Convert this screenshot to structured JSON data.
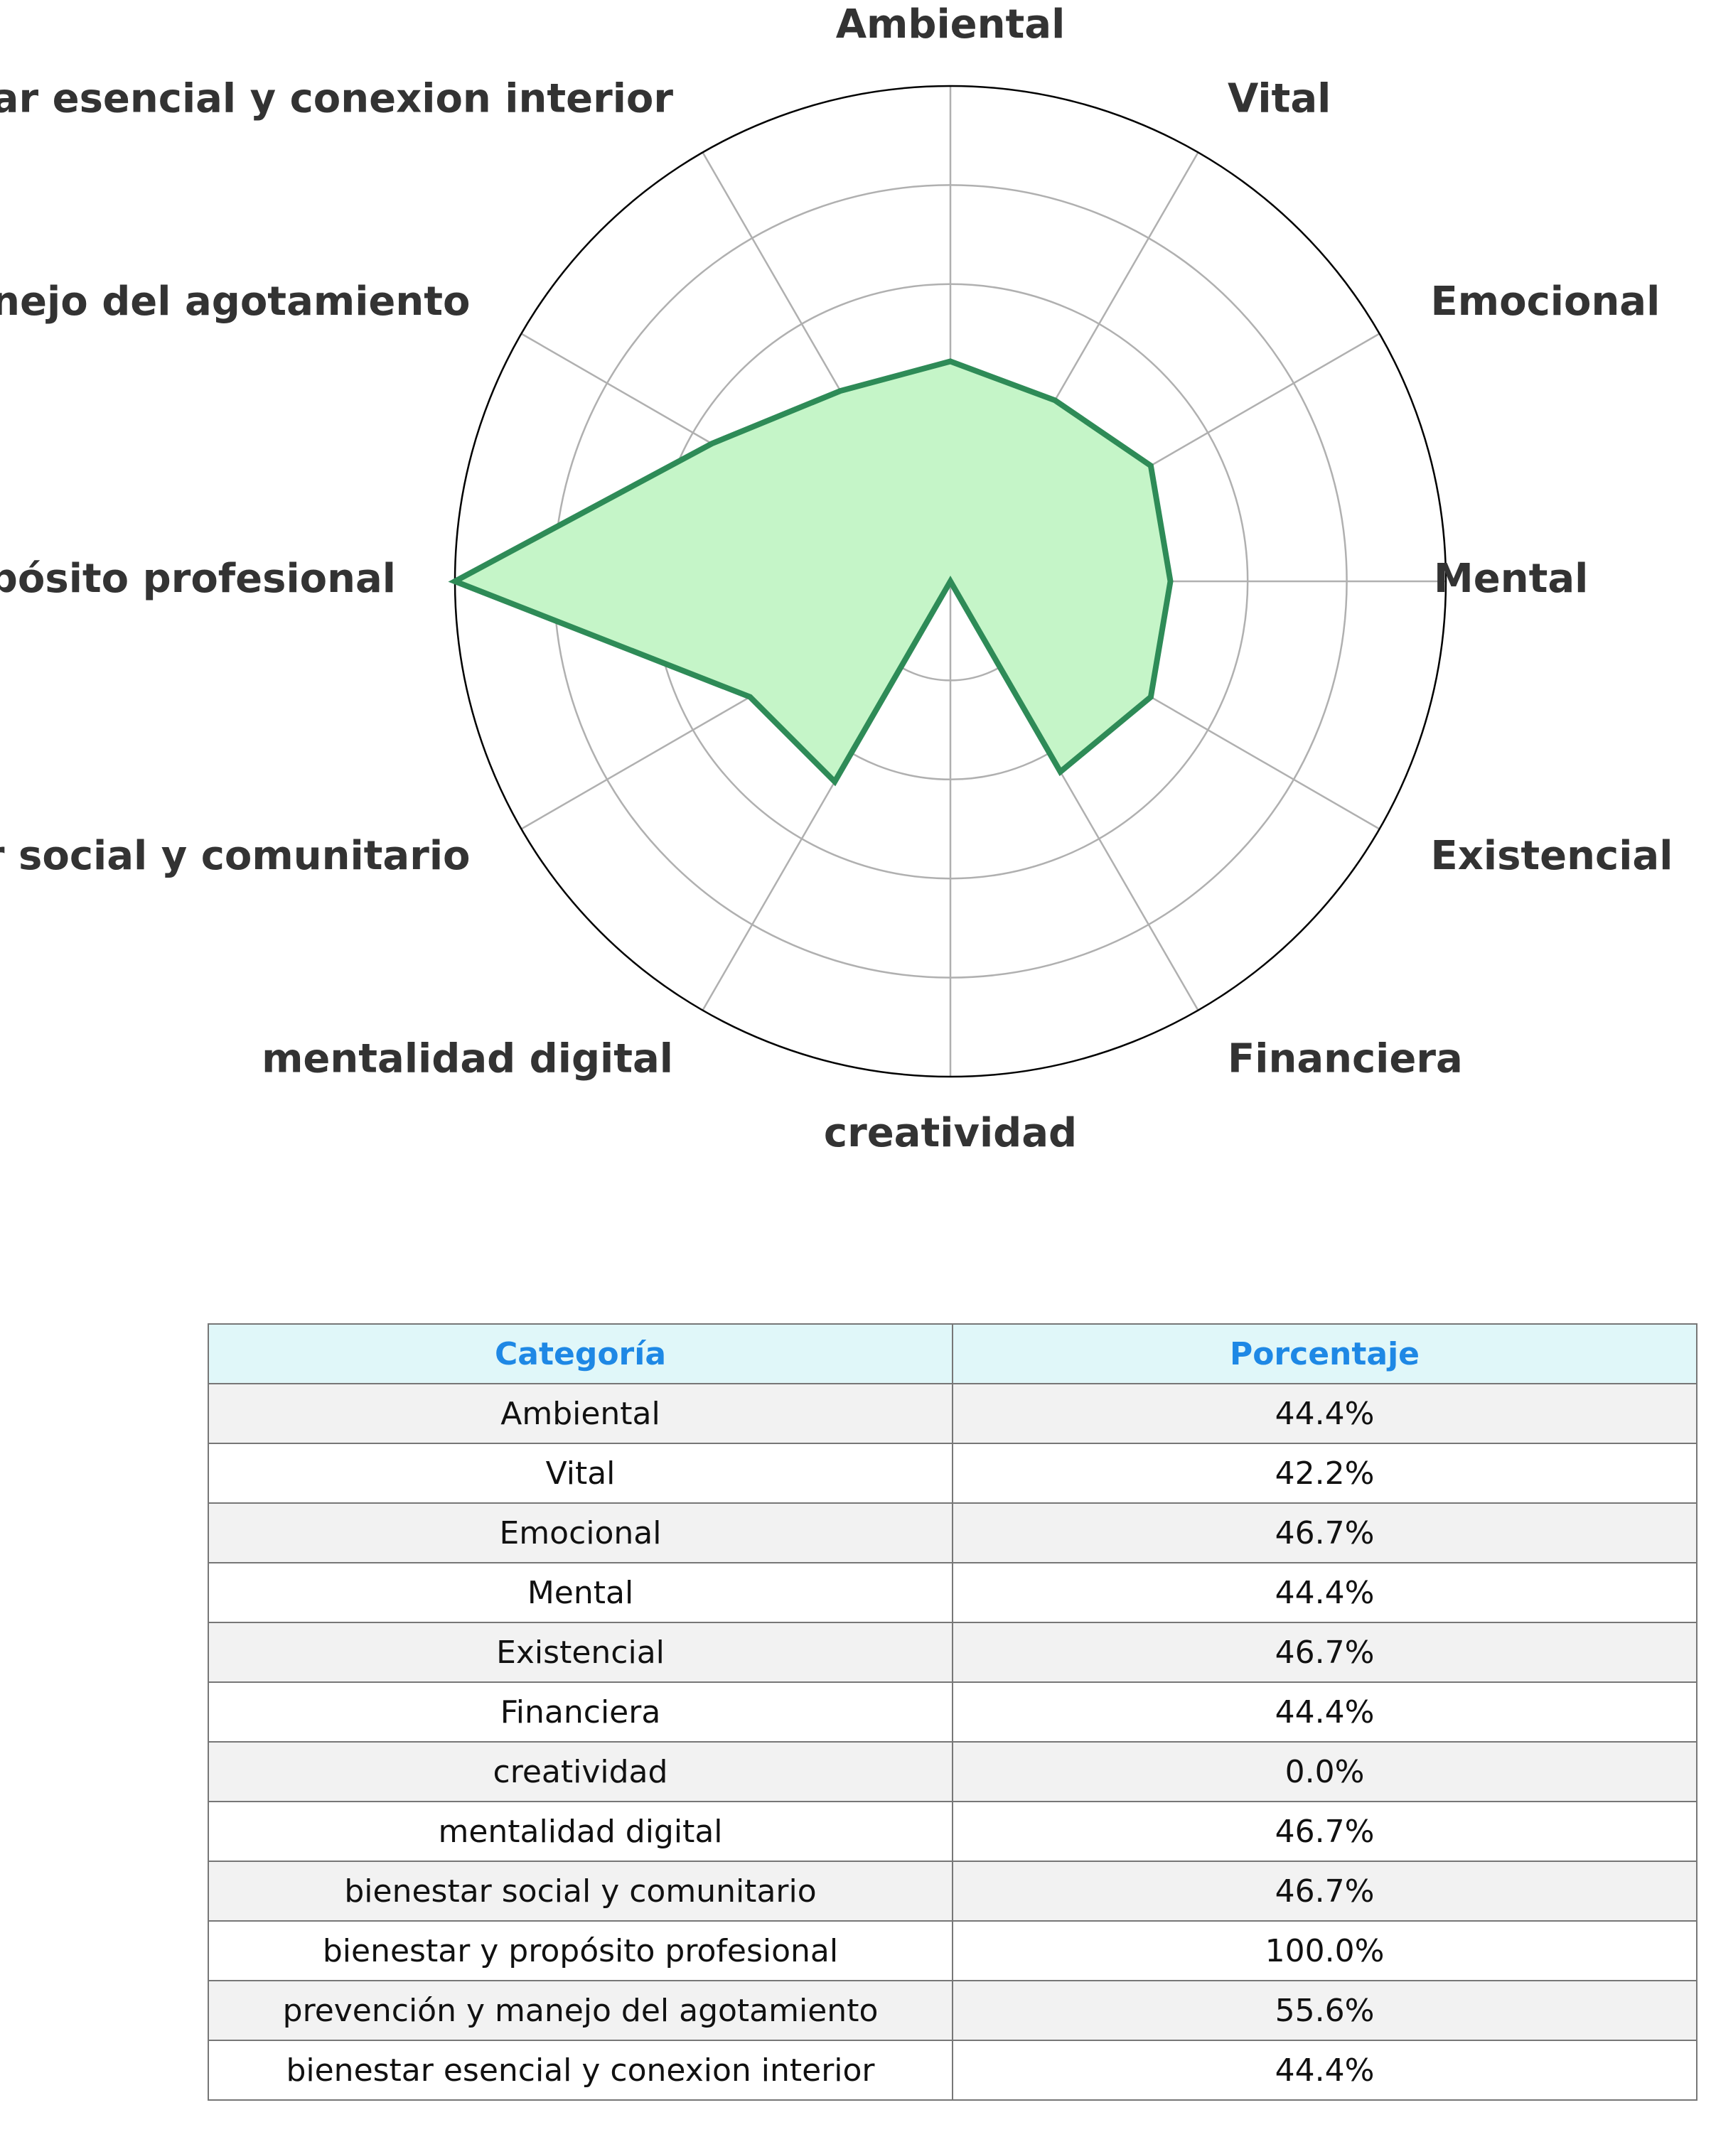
{
  "chart_data": {
    "type": "radar",
    "categories": [
      "Ambiental",
      "Vital",
      "Emocional",
      "Mental",
      "Existencial",
      "Financiera",
      "creatividad",
      "mentalidad digital",
      "bienestar social y comunitario",
      "bienestar y propósito profesional",
      "prevención y manejo del agotamiento",
      "bienestar esencial y conexion interior"
    ],
    "values": [
      44.4,
      42.2,
      46.7,
      44.4,
      46.7,
      44.4,
      0.0,
      46.7,
      46.7,
      100.0,
      55.6,
      44.4
    ],
    "rlim": [
      0,
      100
    ],
    "grid": true,
    "colors": {
      "line": "#2e8b57",
      "fill": "#c5f5c8",
      "grid": "#b0b0b0",
      "label": "#333333"
    }
  },
  "table": {
    "headers": [
      "Categoría",
      "Porcentaje"
    ],
    "rows": [
      [
        "Ambiental",
        "44.4%"
      ],
      [
        "Vital",
        "42.2%"
      ],
      [
        "Emocional",
        "46.7%"
      ],
      [
        "Mental",
        "44.4%"
      ],
      [
        "Existencial",
        "46.7%"
      ],
      [
        "Financiera",
        "44.4%"
      ],
      [
        "creatividad",
        "0.0%"
      ],
      [
        "mentalidad digital",
        "46.7%"
      ],
      [
        "bienestar social y comunitario",
        "46.7%"
      ],
      [
        "bienestar y propósito profesional",
        "100.0%"
      ],
      [
        "prevención y manejo del agotamiento",
        "55.6%"
      ],
      [
        "bienestar esencial y conexion interior",
        "44.4%"
      ]
    ]
  }
}
